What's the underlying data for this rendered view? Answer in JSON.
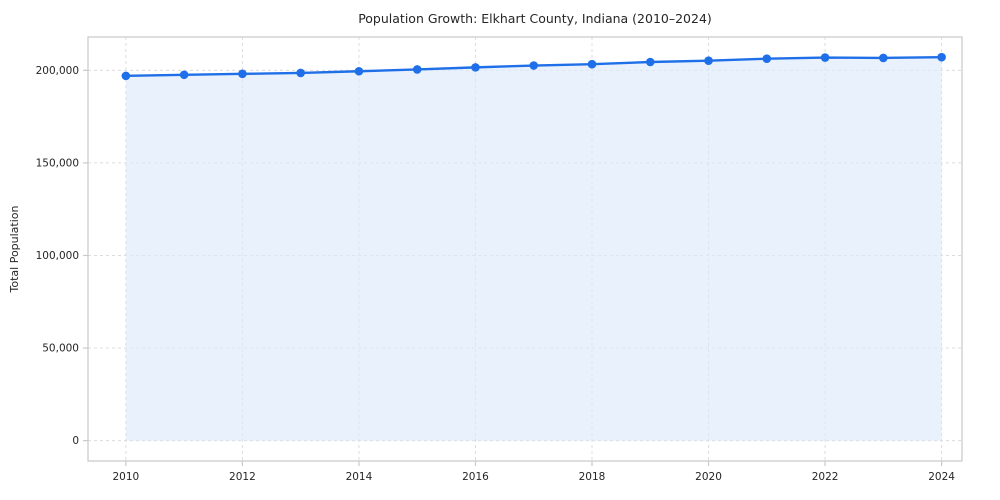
{
  "chart_data": {
    "type": "area",
    "title": "Population Growth: Elkhart County, Indiana (2010–2024)",
    "xlabel": "",
    "ylabel": "Total Population",
    "x": [
      2010,
      2011,
      2012,
      2013,
      2014,
      2015,
      2016,
      2017,
      2018,
      2019,
      2020,
      2021,
      2022,
      2023,
      2024
    ],
    "values": [
      197000,
      197600,
      198100,
      198600,
      199500,
      200500,
      201600,
      202600,
      203300,
      204500,
      205200,
      206300,
      206900,
      206700,
      207100
    ],
    "xlim": [
      2009.35,
      2024.35
    ],
    "ylim": [
      -11000,
      218000
    ],
    "xticks": [
      2010,
      2012,
      2014,
      2016,
      2018,
      2020,
      2022,
      2024
    ],
    "xtick_labels": [
      "2010",
      "2012",
      "2014",
      "2016",
      "2018",
      "2020",
      "2022",
      "2024"
    ],
    "yticks": [
      0,
      50000,
      100000,
      150000,
      200000
    ],
    "ytick_labels": [
      "0",
      "50,000",
      "100,000",
      "150,000",
      "200,000"
    ],
    "grid": true,
    "legend": "none",
    "baseline": 0,
    "colors": {
      "line": "#1f6fe8",
      "marker": "#1f6fe8",
      "fill": "#dce9fb",
      "grid": "#dcdcdc",
      "spine": "#c9c9c9",
      "title": "#111111",
      "tick_text": "#262626",
      "background": "#ffffff"
    }
  }
}
